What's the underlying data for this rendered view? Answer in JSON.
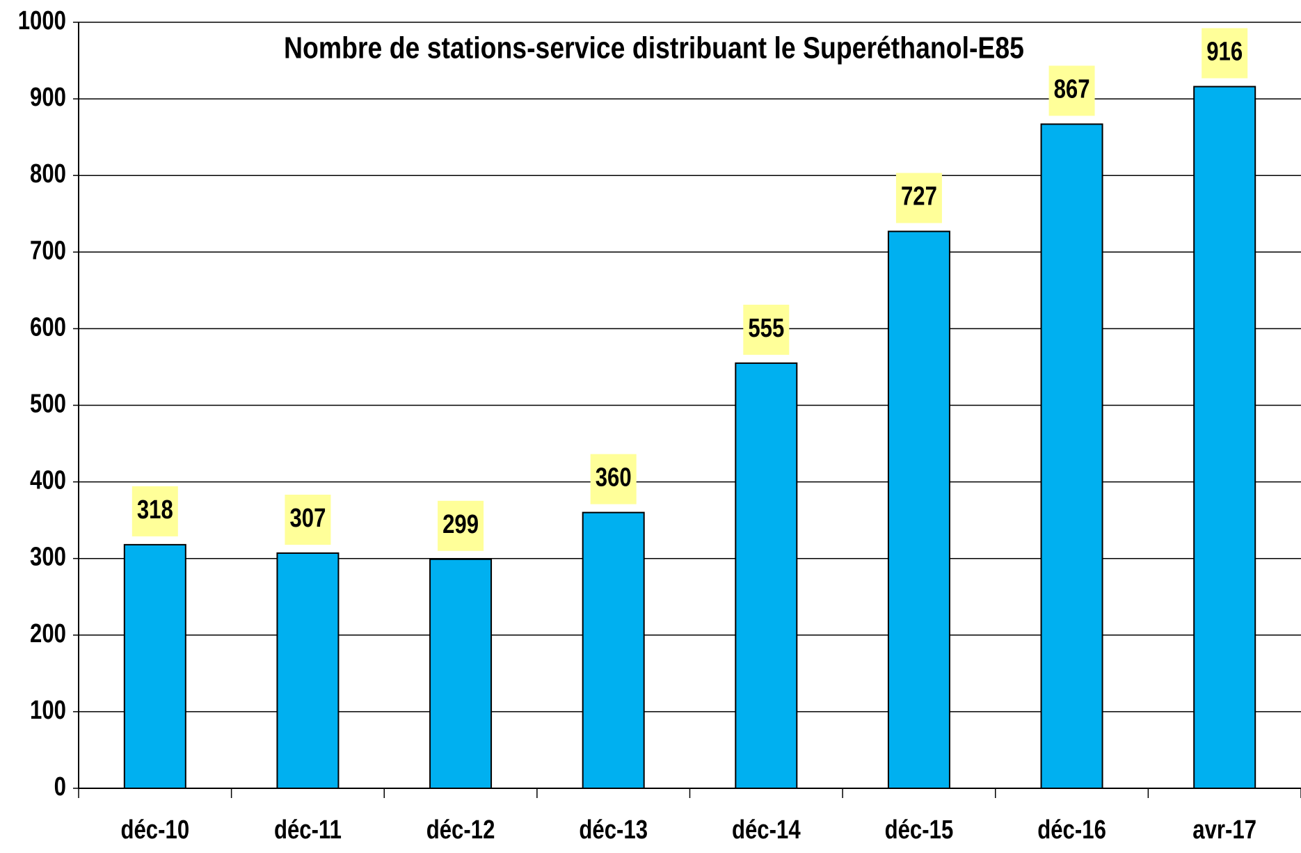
{
  "chart_data": {
    "type": "bar",
    "title": "Nombre de stations-service distribuant le Superéthanol-E85",
    "categories": [
      "déc-10",
      "déc-11",
      "déc-12",
      "déc-13",
      "déc-14",
      "déc-15",
      "déc-16",
      "avr-17"
    ],
    "values": [
      318,
      307,
      299,
      360,
      555,
      727,
      867,
      916
    ],
    "color": "#00b0f0",
    "label_background": "#ffff99",
    "ylim": [
      0,
      1000
    ],
    "yticks": [
      0,
      100,
      200,
      300,
      400,
      500,
      600,
      700,
      800,
      900,
      1000
    ],
    "grid": true
  }
}
